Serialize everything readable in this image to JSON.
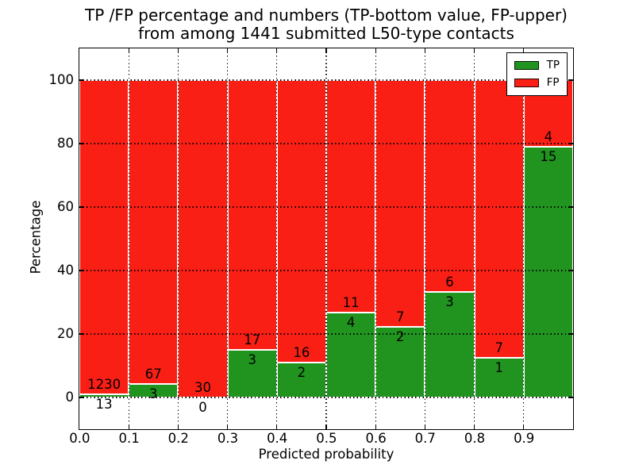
{
  "title": {
    "line1": "TP /FP percentage and numbers (TP-bottom value, FP-upper)",
    "line2": "from among 1441 submitted L50-type contacts"
  },
  "axes": {
    "xlabel": "Predicted probability",
    "ylabel": "Percentage",
    "xtick_labels": [
      "0.0",
      "0.1",
      "0.2",
      "0.3",
      "0.4",
      "0.5",
      "0.6",
      "0.7",
      "0.8",
      "0.9"
    ],
    "ytick_labels": [
      "0",
      "20",
      "40",
      "60",
      "80",
      "100"
    ]
  },
  "legend": {
    "items": [
      {
        "label": "TP",
        "color": "#20941f"
      },
      {
        "label": "FP",
        "color": "#f91f15"
      }
    ]
  },
  "chart_data": {
    "type": "bar",
    "stacked": true,
    "normalized_to_percent": true,
    "title": "TP /FP percentage and numbers (TP-bottom value, FP-upper) from among 1441 submitted L50-type contacts",
    "xlabel": "Predicted probability",
    "ylabel": "Percentage",
    "total_submitted": 1441,
    "bin_width": 0.1,
    "categories": [
      "0.0-0.1",
      "0.1-0.2",
      "0.2-0.3",
      "0.3-0.4",
      "0.4-0.5",
      "0.5-0.6",
      "0.6-0.7",
      "0.7-0.8",
      "0.8-0.9",
      "0.9-1.0"
    ],
    "series": [
      {
        "name": "TP",
        "color": "#20941f",
        "counts": [
          13,
          3,
          0,
          3,
          2,
          4,
          2,
          3,
          1,
          15
        ]
      },
      {
        "name": "FP",
        "color": "#f91f15",
        "counts": [
          1230,
          67,
          30,
          17,
          16,
          11,
          7,
          6,
          7,
          4
        ]
      }
    ],
    "tp_percent_of_bin": [
      1.0,
      4.3,
      0.0,
      15.0,
      11.1,
      26.7,
      22.2,
      33.3,
      12.5,
      78.9
    ],
    "xlim": [
      0.0,
      1.0
    ],
    "ylim": [
      -10,
      110
    ],
    "xticks": [
      0.0,
      0.1,
      0.2,
      0.3,
      0.4,
      0.5,
      0.6,
      0.7,
      0.8,
      0.9
    ],
    "yticks": [
      0,
      20,
      40,
      60,
      80,
      100
    ],
    "grid": "dotted-both-axes",
    "legend_position": "upper-right",
    "bar_edge_color": "#ffffff"
  }
}
